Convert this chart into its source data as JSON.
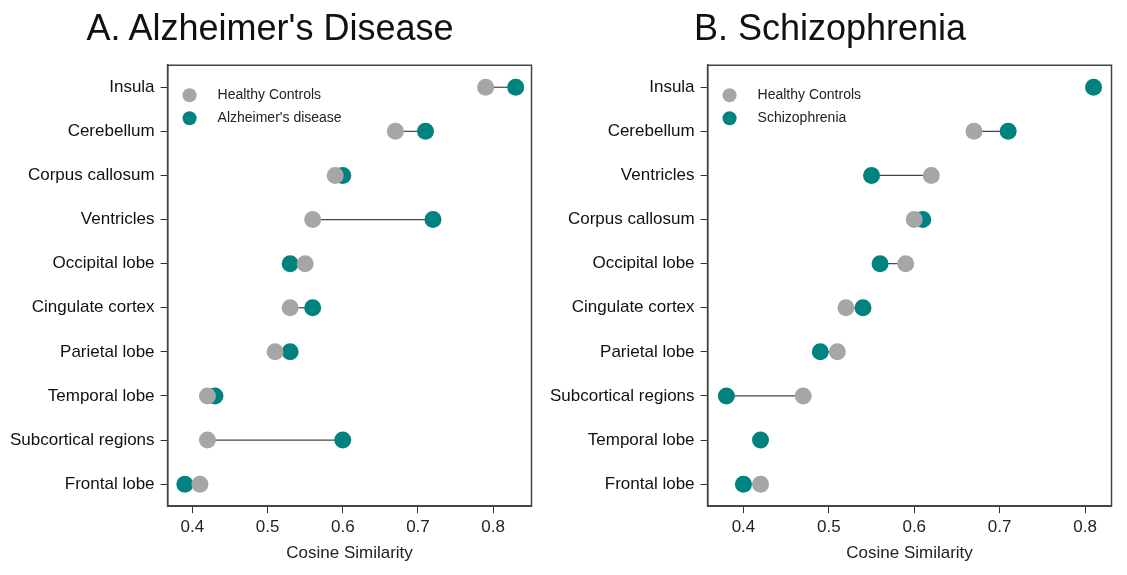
{
  "chart_data": [
    {
      "type": "scatter",
      "title": "A. Alzheimer's Disease",
      "xlabel": "Cosine Similarity",
      "orientation": "horizontal",
      "marker": "circle",
      "legend": "top left",
      "categories": [
        "Insula",
        "Cerebellum",
        "Corpus callosum",
        "Ventricles",
        "Occipital lobe",
        "Cingulate cortex",
        "Parietal lobe",
        "Temporal lobe",
        "Subcortical regions",
        "Frontal lobe"
      ],
      "series": [
        {
          "name": "Healthy Controls",
          "color": "#a6a6a6",
          "values": [
            0.79,
            0.67,
            0.59,
            0.56,
            0.55,
            0.53,
            0.51,
            0.42,
            0.42,
            0.41
          ]
        },
        {
          "name": "Alzheimer's disease",
          "color": "#00827f",
          "values": [
            0.83,
            0.71,
            0.6,
            0.72,
            0.53,
            0.56,
            0.53,
            0.43,
            0.6,
            0.39
          ]
        }
      ],
      "xlim": [
        0.367,
        0.851
      ],
      "xticks": [
        0.4,
        0.5,
        0.6,
        0.7,
        0.8
      ]
    },
    {
      "type": "scatter",
      "title": "B. Schizophrenia",
      "xlabel": "Cosine Similarity",
      "orientation": "horizontal",
      "marker": "circle",
      "legend": "top left",
      "categories": [
        "Insula",
        "Cerebellum",
        "Ventricles",
        "Corpus callosum",
        "Occipital lobe",
        "Cingulate cortex",
        "Parietal lobe",
        "Subcortical regions",
        "Temporal lobe",
        "Frontal lobe"
      ],
      "series": [
        {
          "name": "Healthy Controls",
          "color": "#a6a6a6",
          "values": [
            null,
            0.67,
            0.62,
            0.6,
            0.59,
            0.52,
            0.51,
            0.47,
            null,
            0.42
          ]
        },
        {
          "name": "Schizophrenia",
          "color": "#00827f",
          "values": [
            0.81,
            0.71,
            0.55,
            0.61,
            0.56,
            0.54,
            0.49,
            0.38,
            0.42,
            0.4
          ]
        }
      ],
      "xlim": [
        0.358,
        0.831
      ],
      "xticks": [
        0.4,
        0.5,
        0.6,
        0.7,
        0.8
      ]
    }
  ]
}
